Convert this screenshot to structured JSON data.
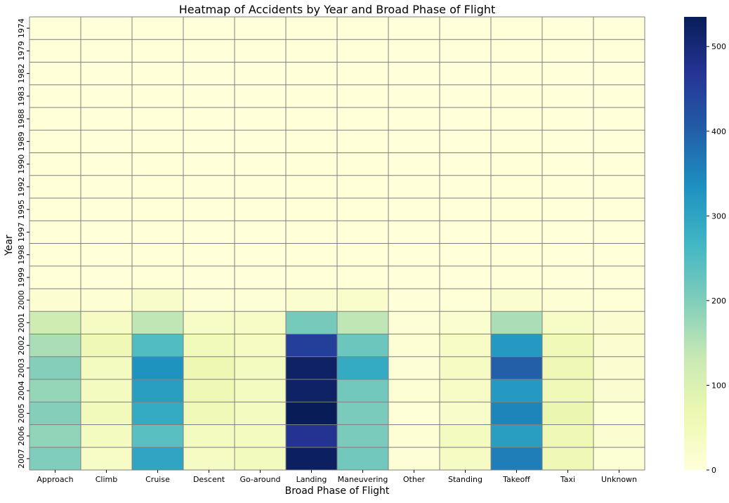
{
  "chart_data": {
    "type": "heatmap",
    "title": "Heatmap of Accidents by Year and Broad Phase of Flight",
    "xlabel": "Broad Phase of Flight",
    "ylabel": "Year",
    "categories": [
      "Approach",
      "Climb",
      "Cruise",
      "Descent",
      "Go-around",
      "Landing",
      "Maneuvering",
      "Other",
      "Standing",
      "Takeoff",
      "Taxi",
      "Unknown"
    ],
    "years": [
      "1974",
      "1979",
      "1982",
      "1983",
      "1988",
      "1989",
      "1990",
      "1992",
      "1995",
      "1997",
      "1998",
      "1999",
      "2000",
      "2001",
      "2002",
      "2003",
      "2004",
      "2005",
      "2006",
      "2007"
    ],
    "values": [
      [
        1,
        0,
        1,
        0,
        0,
        1,
        1,
        0,
        0,
        1,
        0,
        0
      ],
      [
        1,
        0,
        1,
        0,
        0,
        1,
        1,
        0,
        0,
        1,
        0,
        0
      ],
      [
        1,
        0,
        1,
        0,
        0,
        1,
        1,
        0,
        0,
        1,
        0,
        0
      ],
      [
        1,
        0,
        1,
        0,
        0,
        1,
        1,
        0,
        0,
        1,
        0,
        0
      ],
      [
        1,
        0,
        1,
        0,
        0,
        1,
        1,
        0,
        0,
        1,
        0,
        0
      ],
      [
        1,
        0,
        1,
        0,
        0,
        1,
        1,
        0,
        0,
        1,
        0,
        0
      ],
      [
        1,
        0,
        1,
        0,
        0,
        1,
        1,
        0,
        0,
        1,
        0,
        0
      ],
      [
        1,
        0,
        1,
        0,
        0,
        1,
        1,
        0,
        0,
        1,
        0,
        0
      ],
      [
        1,
        0,
        1,
        0,
        0,
        1,
        1,
        0,
        0,
        1,
        0,
        0
      ],
      [
        1,
        0,
        1,
        0,
        0,
        1,
        1,
        0,
        0,
        1,
        0,
        0
      ],
      [
        1,
        0,
        1,
        0,
        0,
        1,
        1,
        0,
        0,
        1,
        0,
        0
      ],
      [
        1,
        0,
        1,
        0,
        0,
        1,
        1,
        0,
        0,
        1,
        0,
        0
      ],
      [
        12,
        8,
        25,
        6,
        5,
        18,
        22,
        2,
        4,
        20,
        8,
        3
      ],
      [
        120,
        35,
        140,
        30,
        30,
        210,
        140,
        5,
        20,
        160,
        30,
        15
      ],
      [
        160,
        60,
        250,
        50,
        35,
        450,
        220,
        8,
        30,
        320,
        55,
        15
      ],
      [
        195,
        40,
        330,
        65,
        40,
        520,
        290,
        5,
        35,
        400,
        60,
        15
      ],
      [
        180,
        40,
        310,
        60,
        40,
        520,
        215,
        8,
        30,
        320,
        55,
        15
      ],
      [
        195,
        50,
        290,
        55,
        40,
        535,
        205,
        3,
        25,
        350,
        70,
        10
      ],
      [
        185,
        40,
        240,
        40,
        40,
        470,
        205,
        8,
        40,
        310,
        60,
        15
      ],
      [
        200,
        30,
        300,
        35,
        45,
        525,
        215,
        5,
        35,
        360,
        60,
        10
      ]
    ],
    "colorbar": {
      "min": 0,
      "max": 535,
      "ticks": [
        0,
        100,
        200,
        300,
        400,
        500
      ]
    },
    "colormap": "YlGnBu",
    "grid_line_color": "#808080"
  }
}
